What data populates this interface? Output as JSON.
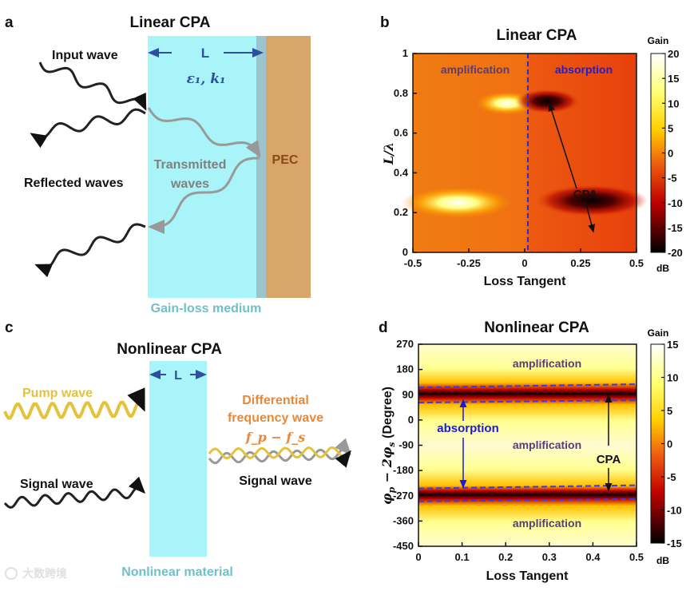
{
  "panels": {
    "a": {
      "letter": "a",
      "title": "Linear CPA",
      "length_label": "L",
      "params_label": "ε₁,  k₁",
      "input_wave": "Input wave",
      "reflected_waves": "Reflected waves",
      "transmitted_line1": "Transmitted",
      "transmitted_line2": "waves",
      "pec": "PEC",
      "medium": "Gain-loss medium"
    },
    "b": {
      "letter": "b"
    },
    "c": {
      "letter": "c",
      "title": "Nonlinear CPA",
      "length_label": "L",
      "pump_wave": "Pump wave",
      "diff_line1": "Differential",
      "diff_line2": "frequency wave",
      "diff_formula": "f_p − f_s",
      "signal_wave_in": "Signal wave",
      "signal_wave_out": "Signal wave",
      "material": "Nonlinear material"
    },
    "d": {
      "letter": "d"
    }
  },
  "watermark": "大数跨境",
  "colors": {
    "medium": "#a8f4f8",
    "pec": "#d9a66a",
    "blue_label": "#2e4fa0",
    "gold": "#e6c23a",
    "orange": "#e8883a",
    "purple": "#5a3c7a",
    "absorption": "#1a1adc"
  },
  "chart_data": [
    {
      "type": "heatmap",
      "title": "Linear CPA",
      "xlabel": "Loss Tangent",
      "ylabel": "L/λ",
      "xlim": [
        -0.5,
        0.5
      ],
      "ylim": [
        0,
        1
      ],
      "xticks": [
        "-0.5",
        "-0.25",
        "0",
        "0.25",
        "0.5"
      ],
      "yticks": [
        "1",
        "0.8",
        "0.6",
        "0.4",
        "0.2",
        "0"
      ],
      "colorbar": {
        "title": "Gain",
        "unit": "dB",
        "range": [
          -20,
          20
        ],
        "ticks": [
          "20",
          "15",
          "10",
          "5",
          "0",
          "-5",
          "-10",
          "-15",
          "-20"
        ]
      },
      "annotations": {
        "left": "amplification",
        "right": "absorption",
        "cpa": "CPA",
        "divider_x": 0
      },
      "features": [
        {
          "kind": "gain-max",
          "x": -0.08,
          "y": 0.75
        },
        {
          "kind": "gain-max",
          "x": -0.3,
          "y": 0.25
        },
        {
          "kind": "CPA-min",
          "x": 0.1,
          "y": 0.76
        },
        {
          "kind": "CPA-min",
          "x": 0.3,
          "y": 0.26
        }
      ]
    },
    {
      "type": "heatmap",
      "title": "Nonlinear CPA",
      "xlabel": "Loss Tangent",
      "ylabel_main": "φ",
      "ylabel_sub1": "p",
      "ylabel_mid": " − 2φ",
      "ylabel_sub2": "s",
      "ylabel_unit": " (Degree)",
      "xlim": [
        0,
        0.5
      ],
      "ylim": [
        -450,
        270
      ],
      "xticks": [
        "0",
        "0.1",
        "0.2",
        "0.3",
        "0.4",
        "0.5"
      ],
      "yticks": [
        "270",
        "180",
        "90",
        "0",
        "-90",
        "-180",
        "-270",
        "-360",
        "-450"
      ],
      "colorbar": {
        "title": "Gain",
        "unit": "dB",
        "range": [
          -15,
          15
        ],
        "ticks": [
          "15",
          "10",
          "5",
          "0",
          "-5",
          "-10",
          "-15"
        ]
      },
      "annotations": {
        "amp_top": "amplification",
        "amp_mid": "amplification",
        "amp_bottom": "amplification",
        "absorption": "absorption",
        "cpa": "CPA"
      },
      "cpa_bands_deg": [
        96,
        -264
      ],
      "absorption_band_edges_deg": [
        [
          116,
          62
        ],
        [
          -244,
          -290
        ]
      ]
    }
  ]
}
